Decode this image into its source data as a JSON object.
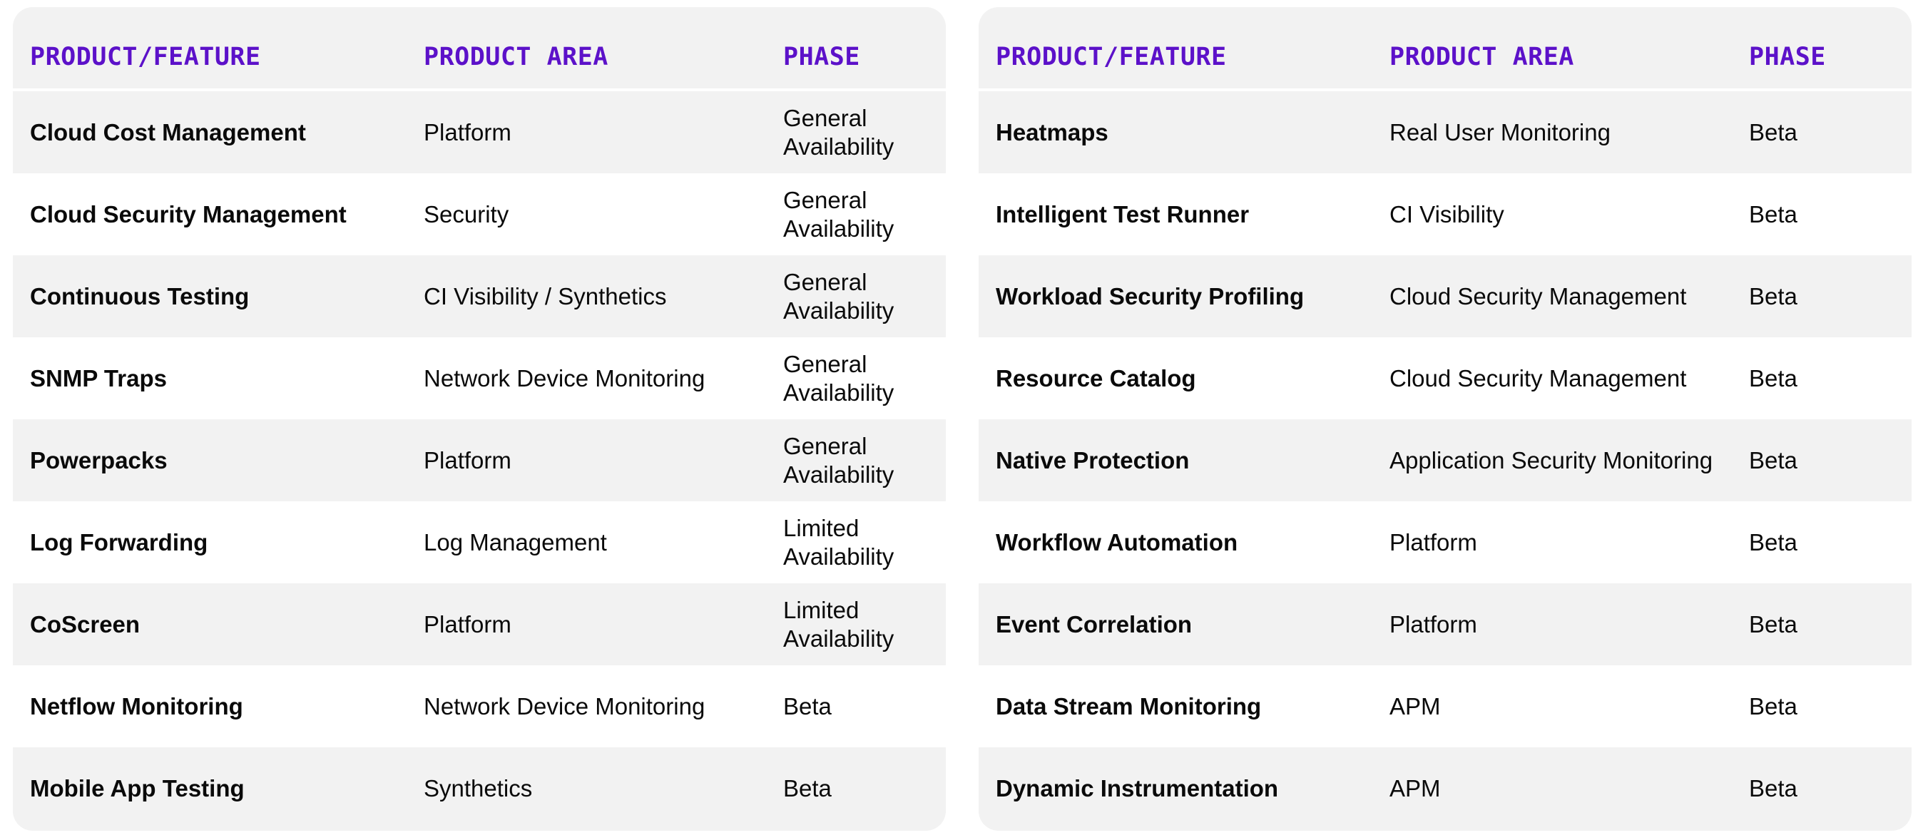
{
  "headers": {
    "feature": "PRODUCT/FEATURE",
    "area": "PRODUCT AREA",
    "phase": "PHASE"
  },
  "colors": {
    "header_text": "#5c11c9",
    "row_shaded": "#f2f2f2",
    "row_plain": "#ffffff"
  },
  "left_table": {
    "rows": [
      {
        "feature": "Cloud Cost Management",
        "area": "Platform",
        "phase": "General Availability"
      },
      {
        "feature": "Cloud Security Management",
        "area": "Security",
        "phase": "General Availability"
      },
      {
        "feature": "Continuous Testing",
        "area": "CI Visibility / Synthetics",
        "phase": "General Availability"
      },
      {
        "feature": "SNMP Traps",
        "area": "Network Device Monitoring",
        "phase": "General Availability"
      },
      {
        "feature": "Powerpacks",
        "area": "Platform",
        "phase": "General Availability"
      },
      {
        "feature": "Log Forwarding",
        "area": "Log Management",
        "phase": "Limited Availability"
      },
      {
        "feature": "CoScreen",
        "area": "Platform",
        "phase": "Limited Availability"
      },
      {
        "feature": "Netflow Monitoring",
        "area": "Network Device Monitoring",
        "phase": "Beta"
      },
      {
        "feature": "Mobile App Testing",
        "area": "Synthetics",
        "phase": "Beta"
      }
    ]
  },
  "right_table": {
    "rows": [
      {
        "feature": "Heatmaps",
        "area": "Real User Monitoring",
        "phase": "Beta"
      },
      {
        "feature": "Intelligent Test Runner",
        "area": "CI Visibility",
        "phase": "Beta"
      },
      {
        "feature": "Workload Security Profiling",
        "area": "Cloud Security Management",
        "phase": "Beta"
      },
      {
        "feature": "Resource Catalog",
        "area": "Cloud Security Management",
        "phase": "Beta"
      },
      {
        "feature": "Native Protection",
        "area": "Application Security Monitoring",
        "phase": "Beta"
      },
      {
        "feature": "Workflow Automation",
        "area": "Platform",
        "phase": "Beta"
      },
      {
        "feature": "Event Correlation",
        "area": "Platform",
        "phase": "Beta"
      },
      {
        "feature": "Data Stream Monitoring",
        "area": "APM",
        "phase": "Beta"
      },
      {
        "feature": "Dynamic Instrumentation",
        "area": "APM",
        "phase": "Beta"
      }
    ]
  }
}
